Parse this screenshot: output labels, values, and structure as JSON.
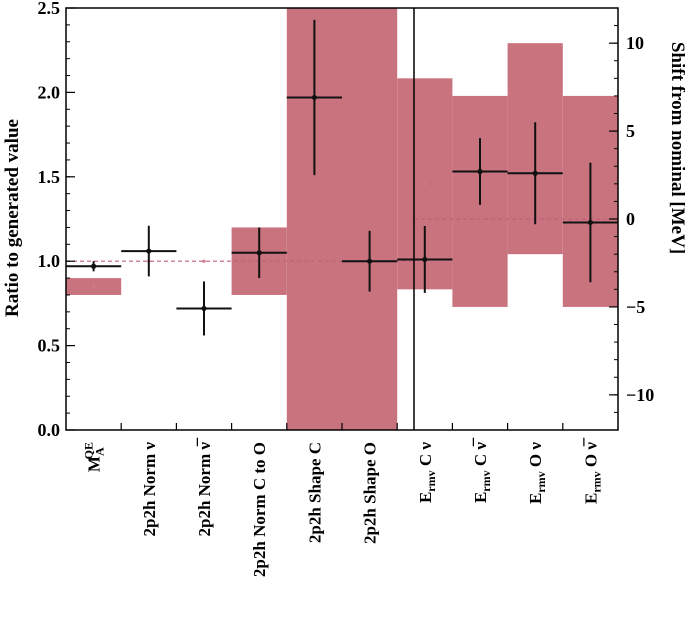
{
  "chart_data": {
    "type": "scatter",
    "ylabel_left": "Ratio to generated value",
    "ylabel_right": "Shift from nominal [MeV]",
    "ylim_left": [
      0.0,
      2.5
    ],
    "ylim_right": [
      -12,
      12
    ],
    "yticks_left": [
      "0.0",
      "0.5",
      "1.0",
      "1.5",
      "2.0",
      "2.5"
    ],
    "yticks_right": [
      "−10",
      "−5",
      "0",
      "5",
      "10"
    ],
    "nominal_left": 1.0,
    "nominal_right": 0.0,
    "band_color": "#c9737f",
    "marker_color": "#111111",
    "categories": [
      {
        "main": "M",
        "sup": "QE",
        "sub": "A",
        "tail": ""
      },
      {
        "main": "2p2h Norm  ν",
        "sup": "",
        "sub": "",
        "tail": ""
      },
      {
        "main": "2p2h Norm  ν̅",
        "sup": "",
        "sub": "",
        "tail": ""
      },
      {
        "main": "2p2h Norm C to O",
        "sup": "",
        "sub": "",
        "tail": ""
      },
      {
        "main": "2p2h Shape C",
        "sup": "",
        "sub": "",
        "tail": ""
      },
      {
        "main": "2p2h Shape O",
        "sup": "",
        "sub": "",
        "tail": ""
      },
      {
        "main": "E",
        "sup": "",
        "sub": "rmv",
        "tail": " C  ν"
      },
      {
        "main": "E",
        "sup": "",
        "sub": "rmv",
        "tail": " C  ν̅"
      },
      {
        "main": "E",
        "sup": "",
        "sub": "rmv",
        "tail": " O  ν"
      },
      {
        "main": "E",
        "sup": "",
        "sub": "rmv",
        "tail": " O  ν̅"
      }
    ],
    "left_panel": {
      "axis": "left",
      "prior_bands": [
        [
          0.8,
          0.9
        ],
        [
          1.0,
          1.0
        ],
        [
          1.0,
          1.0
        ],
        [
          0.8,
          1.2
        ],
        [
          0.0,
          2.5
        ],
        [
          0.0,
          2.5
        ]
      ],
      "prior_central": [
        0.85,
        1.0,
        1.0,
        1.0,
        1.0,
        1.0
      ],
      "post_fit": [
        {
          "value": 0.97,
          "err_low": 0.03,
          "err_high": 0.03
        },
        {
          "value": 1.06,
          "err_low": 0.15,
          "err_high": 0.15
        },
        {
          "value": 0.72,
          "err_low": 0.16,
          "err_high": 0.16
        },
        {
          "value": 1.05,
          "err_low": 0.15,
          "err_high": 0.15
        },
        {
          "value": 1.97,
          "err_low": 0.46,
          "err_high": 0.46
        },
        {
          "value": 1.0,
          "err_low": 0.18,
          "err_high": 0.18
        }
      ]
    },
    "right_panel": {
      "axis": "right",
      "prior_bands": [
        [
          -4.0,
          8.0
        ],
        [
          -5.0,
          7.0
        ],
        [
          -2.0,
          10.0
        ],
        [
          -5.0,
          7.0
        ]
      ],
      "prior_central": [
        2.0,
        0.0,
        0.0,
        0.0
      ],
      "post_fit": [
        {
          "value": -2.3,
          "err_low": 1.9,
          "err_high": 1.9
        },
        {
          "value": 2.7,
          "err_low": 1.9,
          "err_high": 1.9
        },
        {
          "value": 2.6,
          "err_low": 2.9,
          "err_high": 2.9
        },
        {
          "value": -0.2,
          "err_low": 3.4,
          "err_high": 3.4
        }
      ]
    }
  }
}
